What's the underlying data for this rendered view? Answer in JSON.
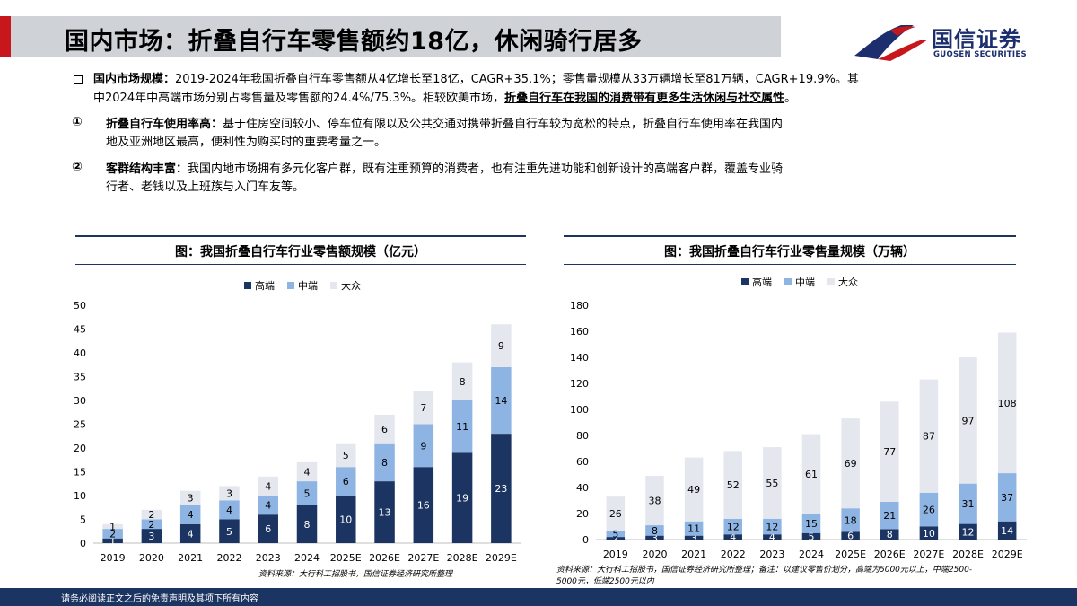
{
  "header": {
    "title": "国内市场：折叠自行车零售额约18亿，休闲骑行居多",
    "logo_cn": "国信证券",
    "logo_en": "GUOSEN SECURITIES"
  },
  "bullet": {
    "label": "国内市场规模：",
    "line1_text": "2019-2024年我国折叠自行车零售额从4亿增长至18亿，CAGR+35.1%；零售量规模从33万辆增长至81万辆，CAGR+19.9%。其",
    "line2_pre": "中2024年中高端市场分别占零售量及零售额的24.4%/75.3%。相较欧美市场，",
    "line2_emph": "折叠自行车在我国的消费带有更多生活休闲与社交属性",
    "line2_end": "。"
  },
  "point1": {
    "marker": "①",
    "label": "折叠自行车使用率高：",
    "line1": "基于住房空间较小、停车位有限以及公共交通对携带折叠自行车较为宽松的特点，折叠自行车使用率在我国内",
    "line2": "地及亚洲地区最高，便利性为购买时的重要考量之一。"
  },
  "point2": {
    "marker": "②",
    "label": "客群结构丰富：",
    "line1": "我国内地市场拥有多元化客户群，既有注重预算的消费者，也有注重先进功能和创新设计的高端客户群，覆盖专业骑",
    "line2": "行者、老钱以及上班族与入门车友等。"
  },
  "colors": {
    "high": "#1c3461",
    "mid": "#8eb4e3",
    "mass": "#e4e7ee",
    "accent": "#c8161d"
  },
  "legend": {
    "high": "高端",
    "mid": "中端",
    "mass": "大众"
  },
  "chart_data": [
    {
      "type": "bar",
      "stacked": true,
      "title": "图：我国折叠自行车行业零售额规模（亿元）",
      "categories": [
        "2019",
        "2020",
        "2021",
        "2022",
        "2023",
        "2024",
        "2025E",
        "2026E",
        "2027E",
        "2028E",
        "2029E"
      ],
      "series": [
        {
          "name": "高端",
          "values": [
            1,
            3,
            4,
            5,
            6,
            8,
            10,
            13,
            16,
            19,
            23
          ]
        },
        {
          "name": "中端",
          "values": [
            2,
            2,
            4,
            4,
            4,
            5,
            6,
            8,
            9,
            11,
            14
          ]
        },
        {
          "name": "大众",
          "values": [
            1,
            2,
            3,
            3,
            4,
            4,
            5,
            6,
            7,
            8,
            9
          ]
        }
      ],
      "ylim": [
        0,
        50
      ],
      "yticks": [
        0,
        5,
        10,
        15,
        20,
        25,
        30,
        35,
        40,
        45,
        50
      ],
      "legend_position": "top",
      "source": "资料来源：大行科工招股书，国信证券经济研究所整理"
    },
    {
      "type": "bar",
      "stacked": true,
      "title": "图：我国折叠自行车行业零售量规模（万辆）",
      "categories": [
        "2019",
        "2020",
        "2021",
        "2022",
        "2023",
        "2024",
        "2025E",
        "2026E",
        "2027E",
        "2028E",
        "2029E"
      ],
      "series": [
        {
          "name": "高端",
          "values": [
            2,
            3,
            3,
            4,
            4,
            5,
            6,
            8,
            10,
            12,
            14
          ]
        },
        {
          "name": "中端",
          "values": [
            5,
            8,
            11,
            12,
            12,
            15,
            18,
            21,
            26,
            31,
            37
          ]
        },
        {
          "name": "大众",
          "values": [
            26,
            38,
            49,
            52,
            55,
            61,
            69,
            77,
            87,
            97,
            108
          ]
        }
      ],
      "ylim": [
        0,
        180
      ],
      "yticks": [
        0,
        20,
        40,
        60,
        80,
        100,
        120,
        140,
        160,
        180
      ],
      "legend_position": "top",
      "source_line1": "资料来源：大行科工招股书，国信证券经济研究所整理；备注：以建议零售价划分，高端为5000元以上，中端2500-",
      "source_line2": "5000元，低端2500元以内"
    }
  ],
  "footer": {
    "text": "请务必阅读正文之后的免责声明及其项下所有内容"
  }
}
